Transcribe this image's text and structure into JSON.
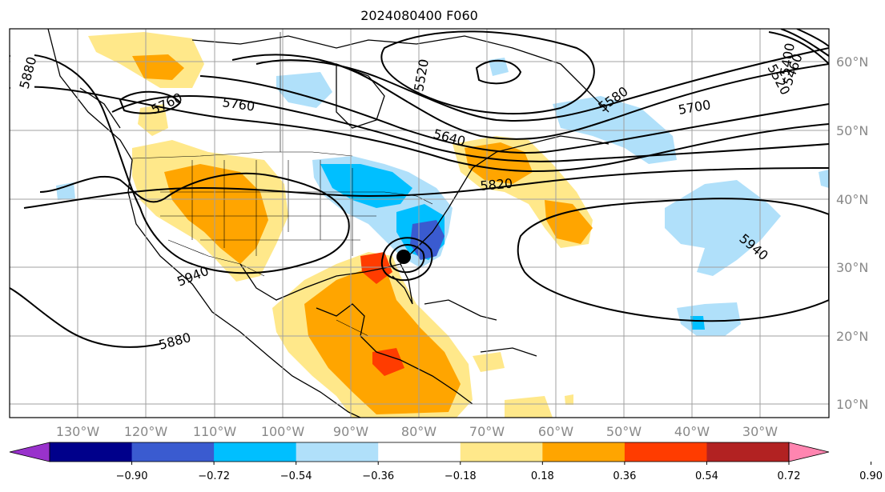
{
  "title": "2024080400 F060",
  "lat_labels": [
    "60°N",
    "50°N",
    "40°N",
    "30°N",
    "20°N",
    "10°N"
  ],
  "lon_labels": [
    "130°W",
    "120°W",
    "110°W",
    "100°W",
    "90°W",
    "80°W",
    "70°W",
    "60°W",
    "50°W",
    "40°W",
    "30°W"
  ],
  "contour_labels": [
    "5880",
    "5760",
    "5760",
    "5640",
    "5520",
    "5580",
    "5700",
    "5820",
    "5940",
    "5940",
    "5880",
    "5400",
    "5460",
    "5520"
  ],
  "colorbar": {
    "tick_labels": [
      "−0.90",
      "−0.72",
      "−0.54",
      "−0.36",
      "−0.18",
      "0.18",
      "0.36",
      "0.54",
      "0.72",
      "0.90"
    ],
    "colors": [
      "#9932cc",
      "#00008b",
      "#3a5bd0",
      "#00bfff",
      "#b0e0fa",
      "#ffffff",
      "#ffe88a",
      "#ffa500",
      "#ff3c00",
      "#b22222",
      "#ff85b0"
    ]
  },
  "marker": "storm-center"
}
